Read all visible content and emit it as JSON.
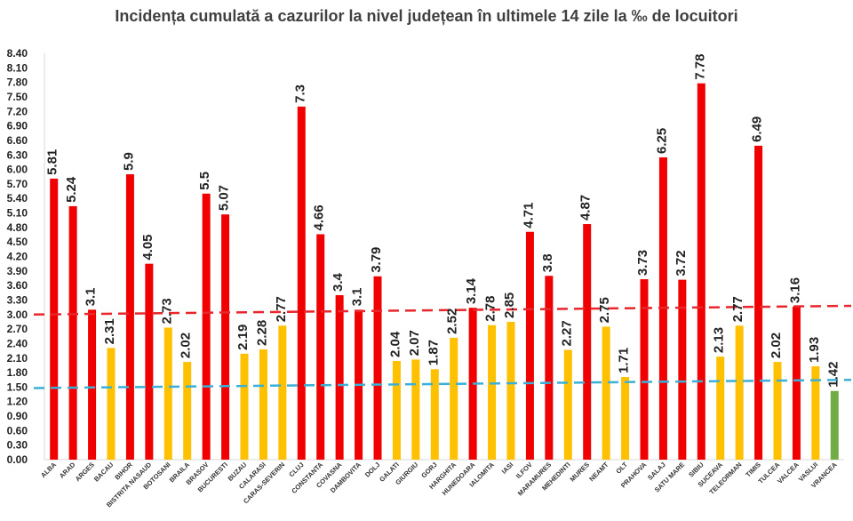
{
  "chart_data": {
    "type": "bar",
    "title": "Incidența cumulată a cazurilor la nivel județean în ultimele 14 zile la ‰ de locuitori",
    "ylim": [
      0,
      8.4
    ],
    "ytick_step": 0.3,
    "categories": [
      "ALBA",
      "ARAD",
      "ARGES",
      "BACAU",
      "BIHOR",
      "BISTRITA NASAUD",
      "BOTOSANI",
      "BRAILA",
      "BRASOV",
      "BUCURESTI",
      "BUZAU",
      "CALARASI",
      "CARAS-SEVERIN",
      "CLUJ",
      "CONSTANTA",
      "COVASNA",
      "DAMBOVITA",
      "DOLJ",
      "GALATI",
      "GIURGIU",
      "GORJ",
      "HARGHITA",
      "HUNEDOARA",
      "IALOMITA",
      "IASI",
      "ILFOV",
      "MARAMURES",
      "MEHEDINTI",
      "MURES",
      "NEAMT",
      "OLT",
      "PRAHOVA",
      "SALAJ",
      "SATU MARE",
      "SIBIU",
      "SUCEAVA",
      "TELEORMAN",
      "TIMIS",
      "TULCEA",
      "VALCEA",
      "VASLUI",
      "VRANCEA"
    ],
    "values": [
      5.81,
      5.24,
      3.1,
      2.31,
      5.9,
      4.05,
      2.73,
      2.02,
      5.5,
      5.07,
      2.19,
      2.28,
      2.77,
      7.3,
      4.66,
      3.4,
      3.1,
      3.79,
      2.04,
      2.07,
      1.87,
      2.52,
      3.14,
      2.78,
      2.85,
      4.71,
      3.8,
      2.27,
      4.87,
      2.75,
      1.71,
      3.73,
      6.25,
      3.72,
      7.78,
      2.13,
      2.77,
      6.49,
      2.02,
      3.16,
      1.93,
      1.42
    ],
    "value_labels": [
      "5.81",
      "5.24",
      "3.1",
      "2.31",
      "5.9",
      "4.05",
      "2.73",
      "2.02",
      "5.5",
      "5.07",
      "2.19",
      "2.28",
      "2.77",
      "7.3",
      "4.66",
      "3.4",
      "3.1",
      "3.79",
      "2.04",
      "2.07",
      "1.87",
      "2.52",
      "3.14",
      "2.78",
      "2.85",
      "4.71",
      "3.8",
      "2.27",
      "4.87",
      "2.75",
      "1.71",
      "3.73",
      "6.25",
      "3.72",
      "7.78",
      "2.13",
      "2.77",
      "6.49",
      "2.02",
      "3.16",
      "1.93",
      "1.42"
    ],
    "thresholds": [
      {
        "color": "#e8262b",
        "style": "dashed",
        "from": 3.0,
        "to": 3.18
      },
      {
        "color": "#3ab0d8",
        "style": "dashed",
        "from": 1.48,
        "to": 1.65
      }
    ],
    "colors": {
      "above_3": "#f00000",
      "between_1_5_and_3": "#ffc000",
      "below_1_5": "#70ad47"
    },
    "grid": false
  }
}
